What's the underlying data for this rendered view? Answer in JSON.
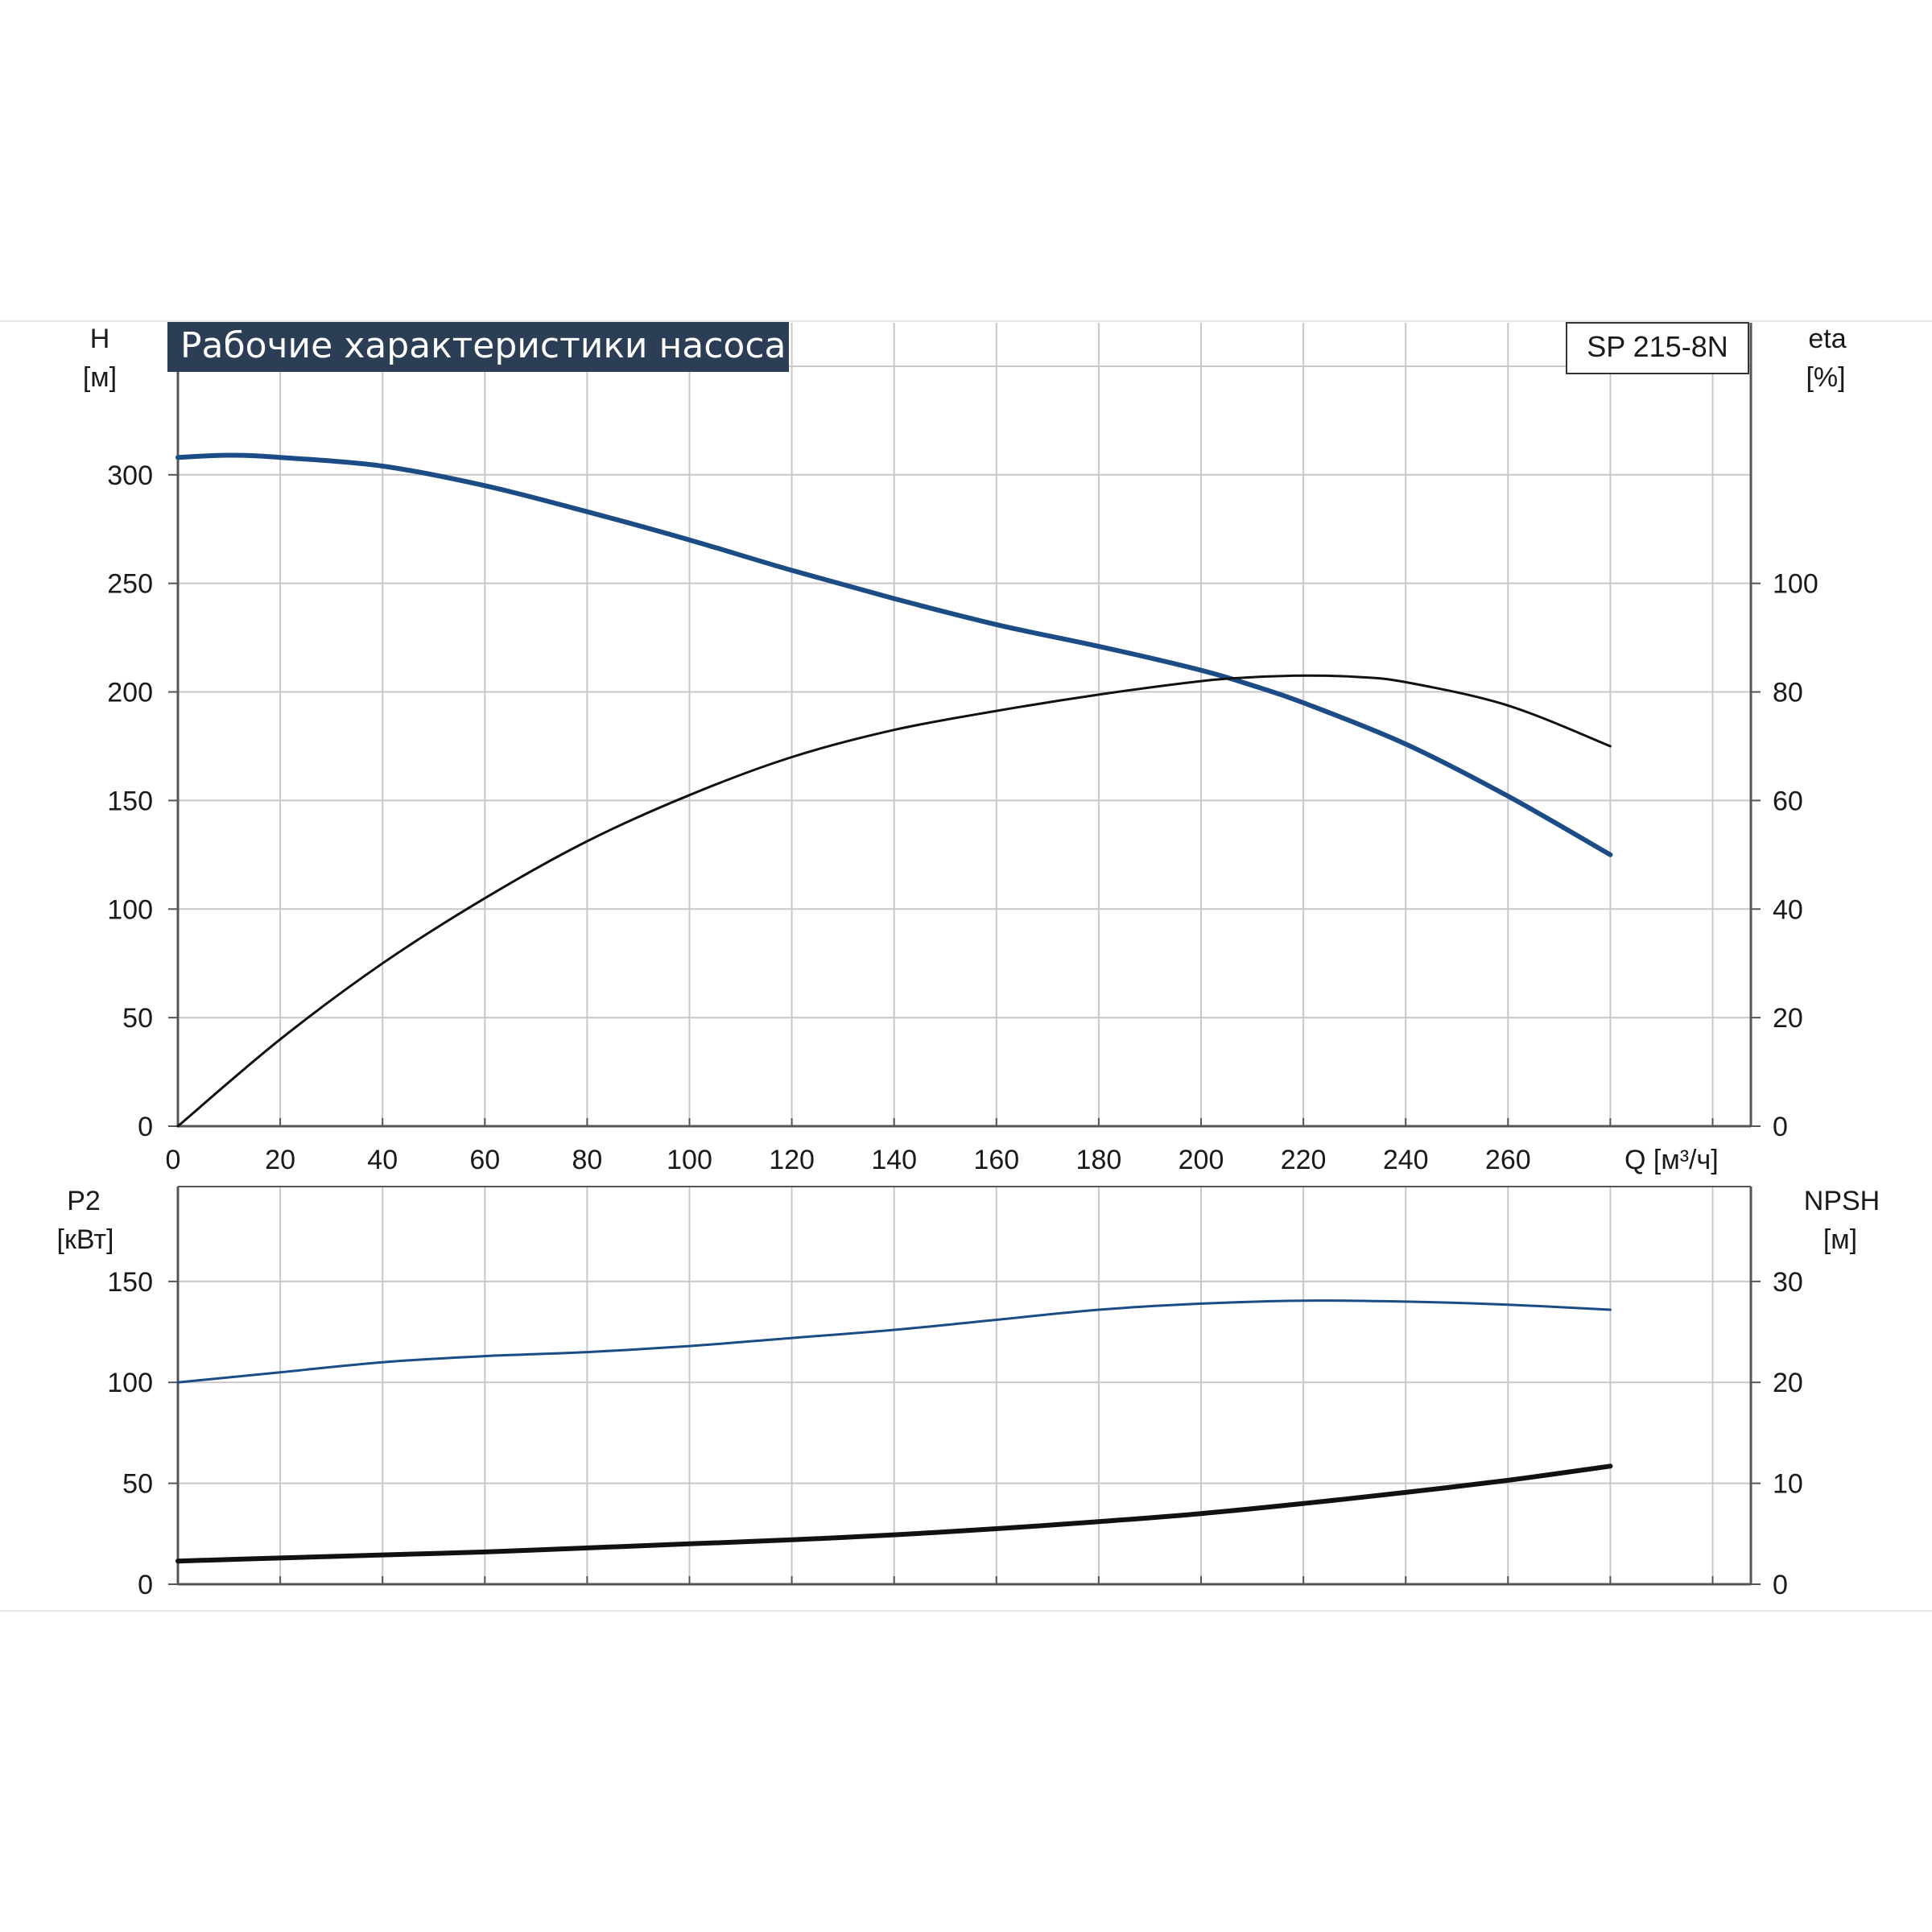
{
  "header": {
    "title": "Рабочие характеристики насоса",
    "model": "SP 215-8N"
  },
  "colors": {
    "blue": "#1c4c86",
    "black": "#111111",
    "grid": "#c8c8c8",
    "title_bg": "#2c3e55",
    "axis": "#555555"
  },
  "chart_data": [
    {
      "type": "line",
      "name": "top-panel",
      "xlabel": "Q [м³/ч]",
      "xlim": [
        0,
        300
      ],
      "xticks": [
        0,
        20,
        40,
        60,
        80,
        100,
        120,
        140,
        160,
        180,
        200,
        220,
        240,
        260
      ],
      "left_axis": {
        "label": "H",
        "unit": "[м]",
        "ylim": [
          0,
          370
        ],
        "ticks": [
          0,
          50,
          100,
          150,
          200,
          250,
          300
        ]
      },
      "right_axis": {
        "label": "eta",
        "unit": "[%]",
        "ylim": [
          0,
          148
        ],
        "ticks": [
          0,
          20,
          40,
          60,
          80,
          100
        ]
      },
      "grid": true,
      "series": [
        {
          "axis": "left",
          "color": "blue",
          "x": [
            0,
            10,
            20,
            40,
            60,
            80,
            100,
            120,
            140,
            160,
            180,
            200,
            210,
            220,
            240,
            260,
            280
          ],
          "values": [
            308,
            309,
            308,
            304,
            295,
            283,
            270,
            256,
            243,
            231,
            221,
            210,
            203,
            195,
            176,
            152,
            125
          ]
        },
        {
          "axis": "right",
          "color": "black",
          "x": [
            0,
            20,
            40,
            60,
            80,
            100,
            120,
            140,
            160,
            180,
            200,
            210,
            220,
            230,
            240,
            260,
            280
          ],
          "values": [
            0,
            16,
            30,
            42,
            52.5,
            61,
            68,
            73,
            76.5,
            79.5,
            82,
            82.7,
            83,
            82.8,
            81.8,
            77.5,
            70
          ]
        }
      ]
    },
    {
      "type": "line",
      "name": "bottom-panel",
      "xlim": [
        0,
        300
      ],
      "xticks": [
        0,
        20,
        40,
        60,
        80,
        100,
        120,
        140,
        160,
        180,
        200,
        220,
        240,
        260
      ],
      "left_axis": {
        "label": "P2",
        "unit": "[кВт]",
        "ylim": [
          0,
          197
        ],
        "ticks": [
          0,
          50,
          100,
          150
        ]
      },
      "right_axis": {
        "label": "NPSH",
        "unit": "[м]",
        "ylim": [
          0,
          39.4
        ],
        "ticks": [
          0,
          10,
          20,
          30
        ]
      },
      "grid": true,
      "series": [
        {
          "axis": "left",
          "color": "blue",
          "x": [
            0,
            20,
            40,
            60,
            80,
            100,
            120,
            140,
            160,
            180,
            200,
            220,
            240,
            260,
            280
          ],
          "values": [
            100,
            105,
            110,
            113,
            115,
            118,
            122,
            126,
            131,
            136,
            139,
            140.5,
            140,
            138.5,
            136
          ]
        },
        {
          "axis": "right",
          "color": "black",
          "x": [
            0,
            20,
            40,
            60,
            80,
            100,
            120,
            140,
            160,
            180,
            200,
            220,
            240,
            260,
            280
          ],
          "values": [
            2.3,
            2.6,
            2.9,
            3.2,
            3.6,
            4.0,
            4.4,
            4.9,
            5.5,
            6.2,
            7.0,
            8.0,
            9.1,
            10.3,
            11.7
          ]
        }
      ]
    }
  ]
}
